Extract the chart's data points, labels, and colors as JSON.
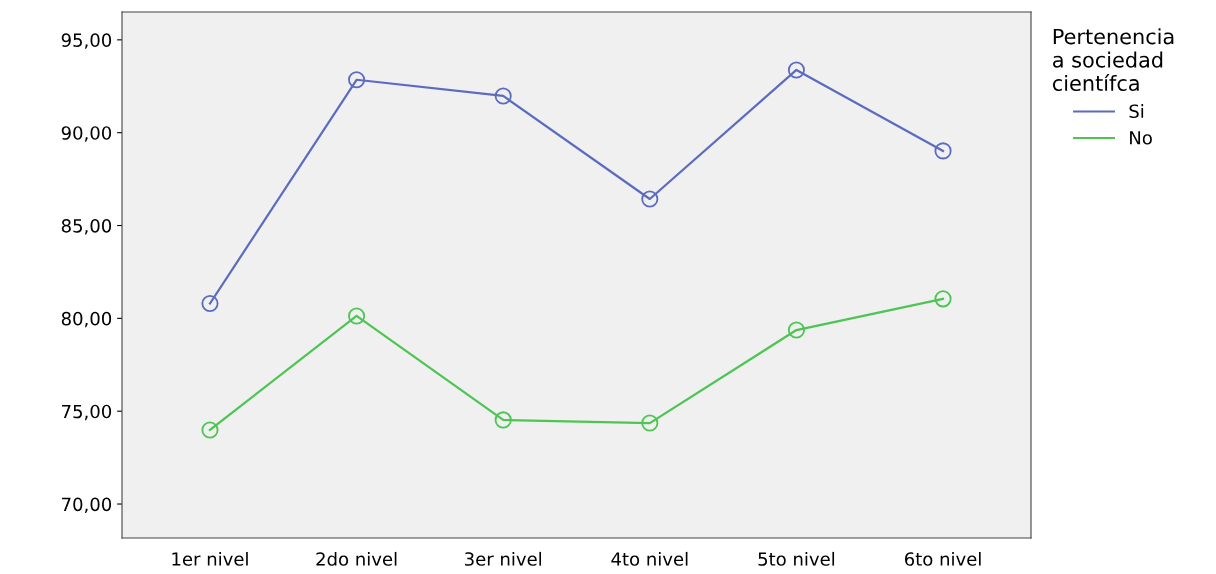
{
  "chart_data": {
    "type": "line",
    "categories": [
      "1er nivel",
      "2do nivel",
      "3er nivel",
      "4to nivel",
      "5to nivel",
      "6to nivel"
    ],
    "series": [
      {
        "name": "Si",
        "color": "#5b6cc0",
        "values": [
          80.8,
          92.85,
          91.98,
          86.43,
          93.38,
          89.02
        ]
      },
      {
        "name": "No",
        "color": "#4cc552",
        "values": [
          73.99,
          80.13,
          74.53,
          74.36,
          79.37,
          81.05
        ]
      }
    ],
    "ylim": [
      68.17,
      96.5
    ],
    "yticks": [
      {
        "value": 70,
        "label": "70,00"
      },
      {
        "value": 75,
        "label": "75,00"
      },
      {
        "value": 80,
        "label": "80,00"
      },
      {
        "value": 85,
        "label": "85,00"
      },
      {
        "value": 90,
        "label": "90,00"
      },
      {
        "value": 95,
        "label": "95,00"
      }
    ],
    "legend_title": "Pertenencia\na sociedad\ncientífca",
    "legend": "top right",
    "marker": "circle",
    "line_style": "solid",
    "grid": false
  }
}
